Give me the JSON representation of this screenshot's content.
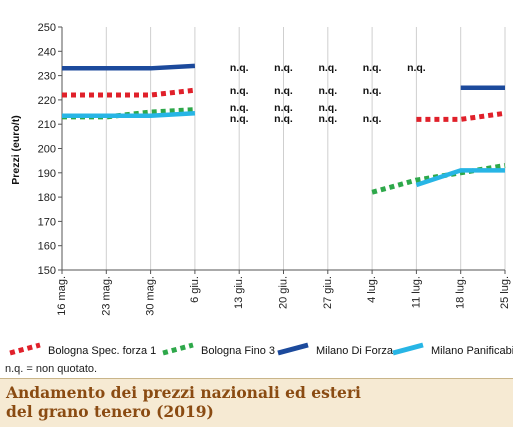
{
  "chart_data": {
    "type": "line",
    "ylabel": "Prezzi (euro/t)",
    "ylim": [
      150,
      250
    ],
    "yticks": [
      150,
      160,
      170,
      180,
      190,
      200,
      210,
      220,
      230,
      240,
      250
    ],
    "categories": [
      "16 mag.",
      "23 mag.",
      "30 mag.",
      "6 giu.",
      "13 giu.",
      "20 giu.",
      "27 giu.",
      "4 lug.",
      "11 lug.",
      "18 lug.",
      "25 lug."
    ],
    "grid": "vertical",
    "legend_position": "bottom",
    "series": [
      {
        "name": "Bologna Spec. forza 1",
        "color": "#e0202a",
        "style": "dotted",
        "values": [
          222,
          222,
          222,
          224,
          null,
          null,
          null,
          null,
          212,
          212,
          214.5
        ]
      },
      {
        "name": "Bologna Fino 3",
        "color": "#2ea84a",
        "style": "dotted",
        "values": [
          213,
          213,
          215,
          216,
          null,
          null,
          null,
          182,
          187,
          190,
          193
        ]
      },
      {
        "name": "Milano Di Forza",
        "color": "#1c4a9c",
        "style": "solid",
        "values": [
          233,
          233,
          233,
          234,
          null,
          null,
          null,
          null,
          null,
          225,
          225
        ]
      },
      {
        "name": "Milano Panificabile",
        "color": "#27b5e5",
        "style": "solid",
        "values": [
          213.5,
          213.5,
          213.5,
          214.5,
          null,
          null,
          null,
          null,
          185,
          191,
          191
        ]
      }
    ],
    "annotations": [
      {
        "text": "n.q.",
        "x": "13 giu.",
        "y": 233.5
      },
      {
        "text": "n.q.",
        "x": "20 giu.",
        "y": 233.5
      },
      {
        "text": "n.q.",
        "x": "27 giu.",
        "y": 233.5
      },
      {
        "text": "n.q.",
        "x": "4 lug.",
        "y": 233.5
      },
      {
        "text": "n.q.",
        "x": "11 lug.",
        "y": 233.5
      },
      {
        "text": "n.q.",
        "x": "13 giu.",
        "y": 224
      },
      {
        "text": "n.q.",
        "x": "20 giu.",
        "y": 224
      },
      {
        "text": "n.q.",
        "x": "27 giu.",
        "y": 224
      },
      {
        "text": "n.q.",
        "x": "4 lug.",
        "y": 224
      },
      {
        "text": "n.q.",
        "x": "13 giu.",
        "y": 217
      },
      {
        "text": "n.q.",
        "x": "20 giu.",
        "y": 217
      },
      {
        "text": "n.q.",
        "x": "27 giu.",
        "y": 217
      },
      {
        "text": "n.q.",
        "x": "13 giu.",
        "y": 212.5
      },
      {
        "text": "n.q.",
        "x": "20 giu.",
        "y": 212.5
      },
      {
        "text": "n.q.",
        "x": "27 giu.",
        "y": 212.5
      },
      {
        "text": "n.q.",
        "x": "4 lug.",
        "y": 212.5
      }
    ]
  },
  "footnote": "n.q. = non quotato.",
  "caption": {
    "line1": "Andamento dei prezzi nazionali ed esteri",
    "line2": "del grano tenero (2019)"
  }
}
